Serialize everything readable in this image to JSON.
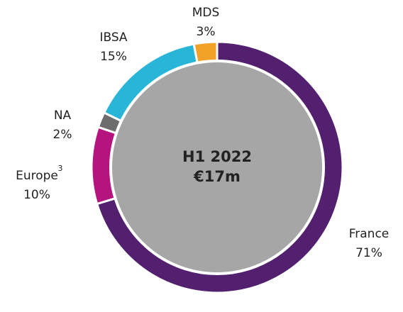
{
  "chart_data": {
    "type": "donut",
    "categories": [
      "France",
      "Europe",
      "NA",
      "IBSA",
      "MDS"
    ],
    "category_superscripts": [
      null,
      "3",
      null,
      null,
      null
    ],
    "values": [
      71,
      10,
      2,
      15,
      3
    ],
    "value_labels": [
      "71%",
      "10%",
      "2%",
      "15%",
      "3%"
    ],
    "colors": [
      "#52206e",
      "#b5137d",
      "#6d6d6d",
      "#29b5d8",
      "#f4a12a"
    ],
    "center_label": [
      "H1 2022",
      "€17m"
    ]
  }
}
